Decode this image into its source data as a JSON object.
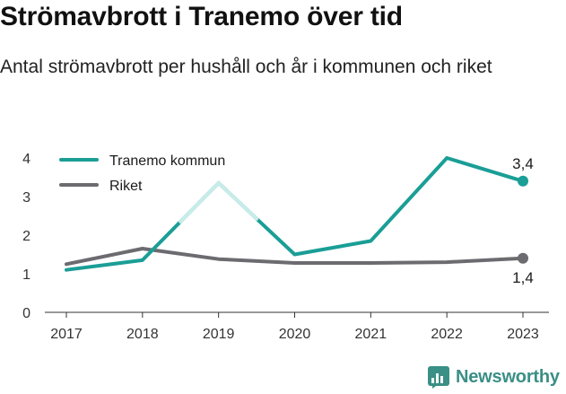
{
  "header": {
    "title": "Strömavbrott i Tranemo över tid",
    "subtitle": "Antal strömavbrott per hushåll och år i kommunen och riket"
  },
  "brand": {
    "name": "Newsworthy",
    "icon": "newsworthy-logo-icon",
    "color": "#3a8f86"
  },
  "chart_data": {
    "type": "line",
    "x": [
      "2017",
      "2018",
      "2019",
      "2020",
      "2021",
      "2022",
      "2023"
    ],
    "series": [
      {
        "name": "Tranemo kommun",
        "color": "#1a9e96",
        "values": [
          1.1,
          1.35,
          3.35,
          1.5,
          1.85,
          4.0,
          3.4
        ]
      },
      {
        "name": "Riket",
        "color": "#6b6b70",
        "values": [
          1.25,
          1.65,
          1.38,
          1.28,
          1.28,
          1.3,
          1.4
        ]
      }
    ],
    "yticks": [
      "0",
      "1",
      "2",
      "3",
      "4"
    ],
    "ylim": [
      0,
      4
    ],
    "end_labels": [
      "3,4",
      "1,4"
    ],
    "grid": false,
    "legend": "top-left",
    "highlight_color": "#c8ece9"
  }
}
